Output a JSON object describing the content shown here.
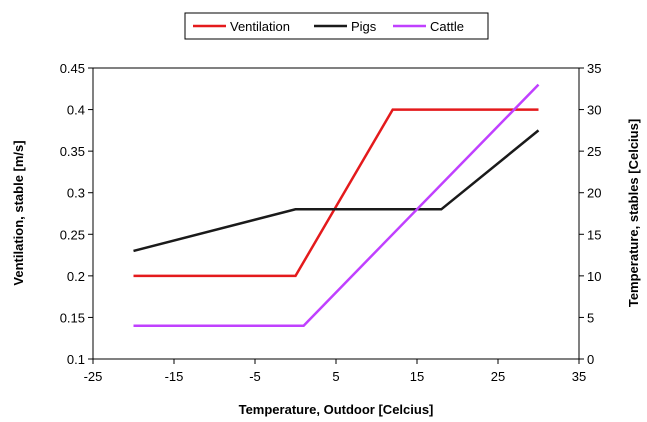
{
  "chart_data": {
    "type": "line",
    "xlabel": "Temperature, Outdoor [Celcius]",
    "ylabel": "Ventilation, stable [m/s]",
    "y2label": "Temperature, stables [Celcius]",
    "xlim": [
      -25,
      35
    ],
    "ylim": [
      0.1,
      0.45
    ],
    "y2lim": [
      0,
      35
    ],
    "xticks": [
      "-25",
      "-15",
      "-5",
      "5",
      "15",
      "25",
      "35"
    ],
    "yticks": [
      "0.1",
      "0.15",
      "0.2",
      "0.25",
      "0.3",
      "0.35",
      "0.4",
      "0.45"
    ],
    "y2ticks": [
      "0",
      "5",
      "10",
      "15",
      "20",
      "25",
      "30",
      "35"
    ],
    "grid": false,
    "legend_position": "top-center",
    "series": [
      {
        "name": "Ventilation",
        "axis": "left",
        "color": "#e41a1c",
        "points": [
          [
            -20,
            0.2
          ],
          [
            0,
            0.2
          ],
          [
            12,
            0.4
          ],
          [
            30,
            0.4
          ]
        ]
      },
      {
        "name": "Pigs",
        "axis": "right",
        "color": "#1a1a1a",
        "points": [
          [
            -20,
            13
          ],
          [
            0,
            18
          ],
          [
            18,
            18
          ],
          [
            30,
            27.5
          ]
        ]
      },
      {
        "name": "Cattle",
        "axis": "right",
        "color": "#c040ff",
        "points": [
          [
            -20,
            4
          ],
          [
            1,
            4
          ],
          [
            30,
            33
          ]
        ]
      }
    ]
  }
}
